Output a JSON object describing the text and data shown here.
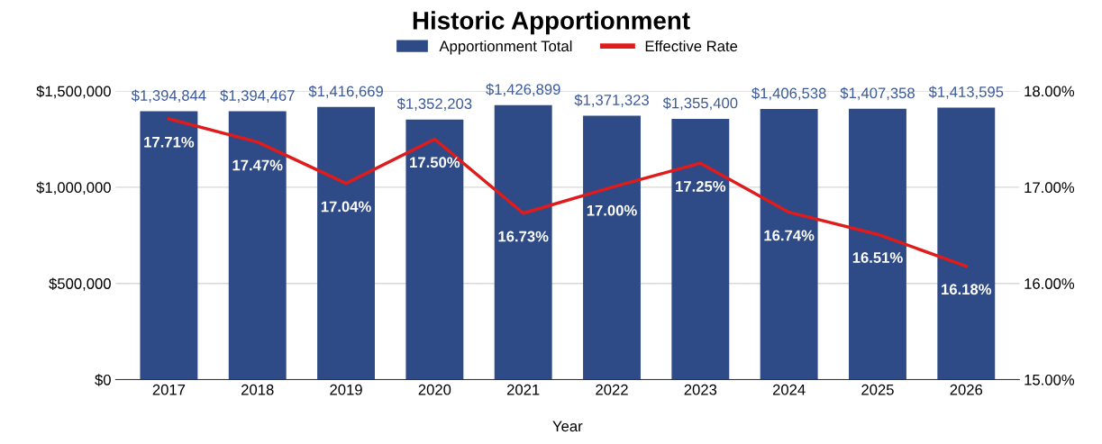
{
  "chart_data": {
    "type": "bar",
    "title": "Historic Apportionment",
    "xlabel": "Year",
    "categories": [
      "2017",
      "2018",
      "2019",
      "2020",
      "2021",
      "2022",
      "2023",
      "2024",
      "2025",
      "2026"
    ],
    "series": [
      {
        "name": "Apportionment Total",
        "color": "#2f4b87",
        "values": [
          1394844,
          1394467,
          1416669,
          1352203,
          1426899,
          1371323,
          1355400,
          1406538,
          1407358,
          1413595
        ],
        "value_labels": [
          "$1,394,844",
          "$1,394,467",
          "$1,416,669",
          "$1,352,203",
          "$1,426,899",
          "$1,371,323",
          "$1,355,400",
          "$1,406,538",
          "$1,407,358",
          "$1,413,595"
        ]
      },
      {
        "name": "Effective Rate",
        "type": "line",
        "axis": "y2",
        "color": "#e01b1b",
        "values": [
          17.71,
          17.47,
          17.04,
          17.5,
          16.73,
          17.0,
          17.25,
          16.74,
          16.51,
          16.18
        ],
        "value_labels": [
          "17.71%",
          "17.47%",
          "17.04%",
          "17.50%",
          "16.73%",
          "17.00%",
          "17.25%",
          "16.74%",
          "16.51%",
          "16.18%"
        ]
      }
    ],
    "ylim": [
      0,
      1500000
    ],
    "yticks": [
      {
        "value": 0,
        "label": "$0"
      },
      {
        "value": 500000,
        "label": "$500,000"
      },
      {
        "value": 1000000,
        "label": "$1,000,000"
      },
      {
        "value": 1500000,
        "label": "$1,500,000"
      }
    ],
    "y2lim": [
      15,
      18
    ],
    "y2ticks": [
      {
        "value": 15,
        "label": "15.00%"
      },
      {
        "value": 16,
        "label": "16.00%"
      },
      {
        "value": 17,
        "label": "17.00%"
      },
      {
        "value": 18,
        "label": "18.00%"
      }
    ],
    "grid": "y",
    "legend": "top"
  }
}
